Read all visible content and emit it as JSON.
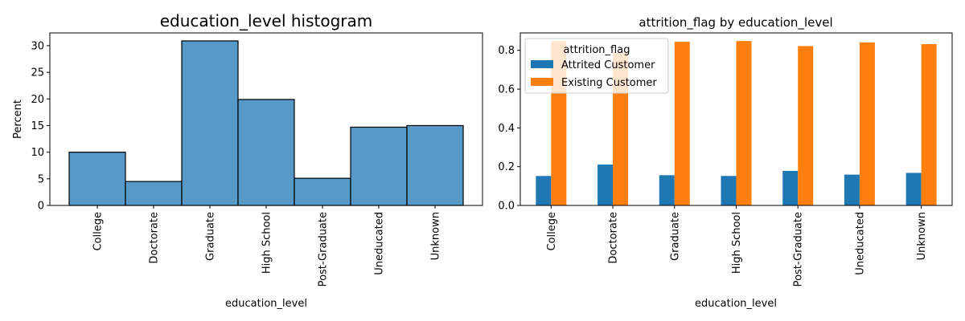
{
  "chart_data": [
    {
      "type": "bar",
      "title": "education_level histogram",
      "xlabel": "education_level",
      "ylabel": "Percent",
      "categories": [
        "College",
        "Doctorate",
        "Graduate",
        "High School",
        "Post-Graduate",
        "Uneducated",
        "Unknown"
      ],
      "values": [
        10.0,
        4.5,
        30.9,
        19.9,
        5.1,
        14.7,
        15.0
      ],
      "ylim": [
        0,
        32.4
      ],
      "yticks": [
        0,
        5,
        10,
        15,
        20,
        25,
        30
      ],
      "bar_color": "#5799c7",
      "edge_color": "#000000",
      "grid": false
    },
    {
      "type": "bar",
      "title": "attrition_flag by education_level",
      "xlabel": "education_level",
      "ylabel": "",
      "categories": [
        "College",
        "Doctorate",
        "Graduate",
        "High School",
        "Post-Graduate",
        "Uneducated",
        "Unknown"
      ],
      "series": [
        {
          "name": "Attrited Customer",
          "color": "#1f77b4",
          "values": [
            0.152,
            0.211,
            0.156,
            0.152,
            0.178,
            0.159,
            0.168
          ]
        },
        {
          "name": "Existing Customer",
          "color": "#ff7f0e",
          "values": [
            0.848,
            0.789,
            0.844,
            0.848,
            0.822,
            0.841,
            0.832
          ]
        }
      ],
      "ylim": [
        0,
        0.89
      ],
      "yticks": [
        "0.0",
        "0.2",
        "0.4",
        "0.6",
        "0.8"
      ],
      "legend": {
        "title": "attrition_flag",
        "placement": "top-left"
      },
      "grid": false
    }
  ]
}
